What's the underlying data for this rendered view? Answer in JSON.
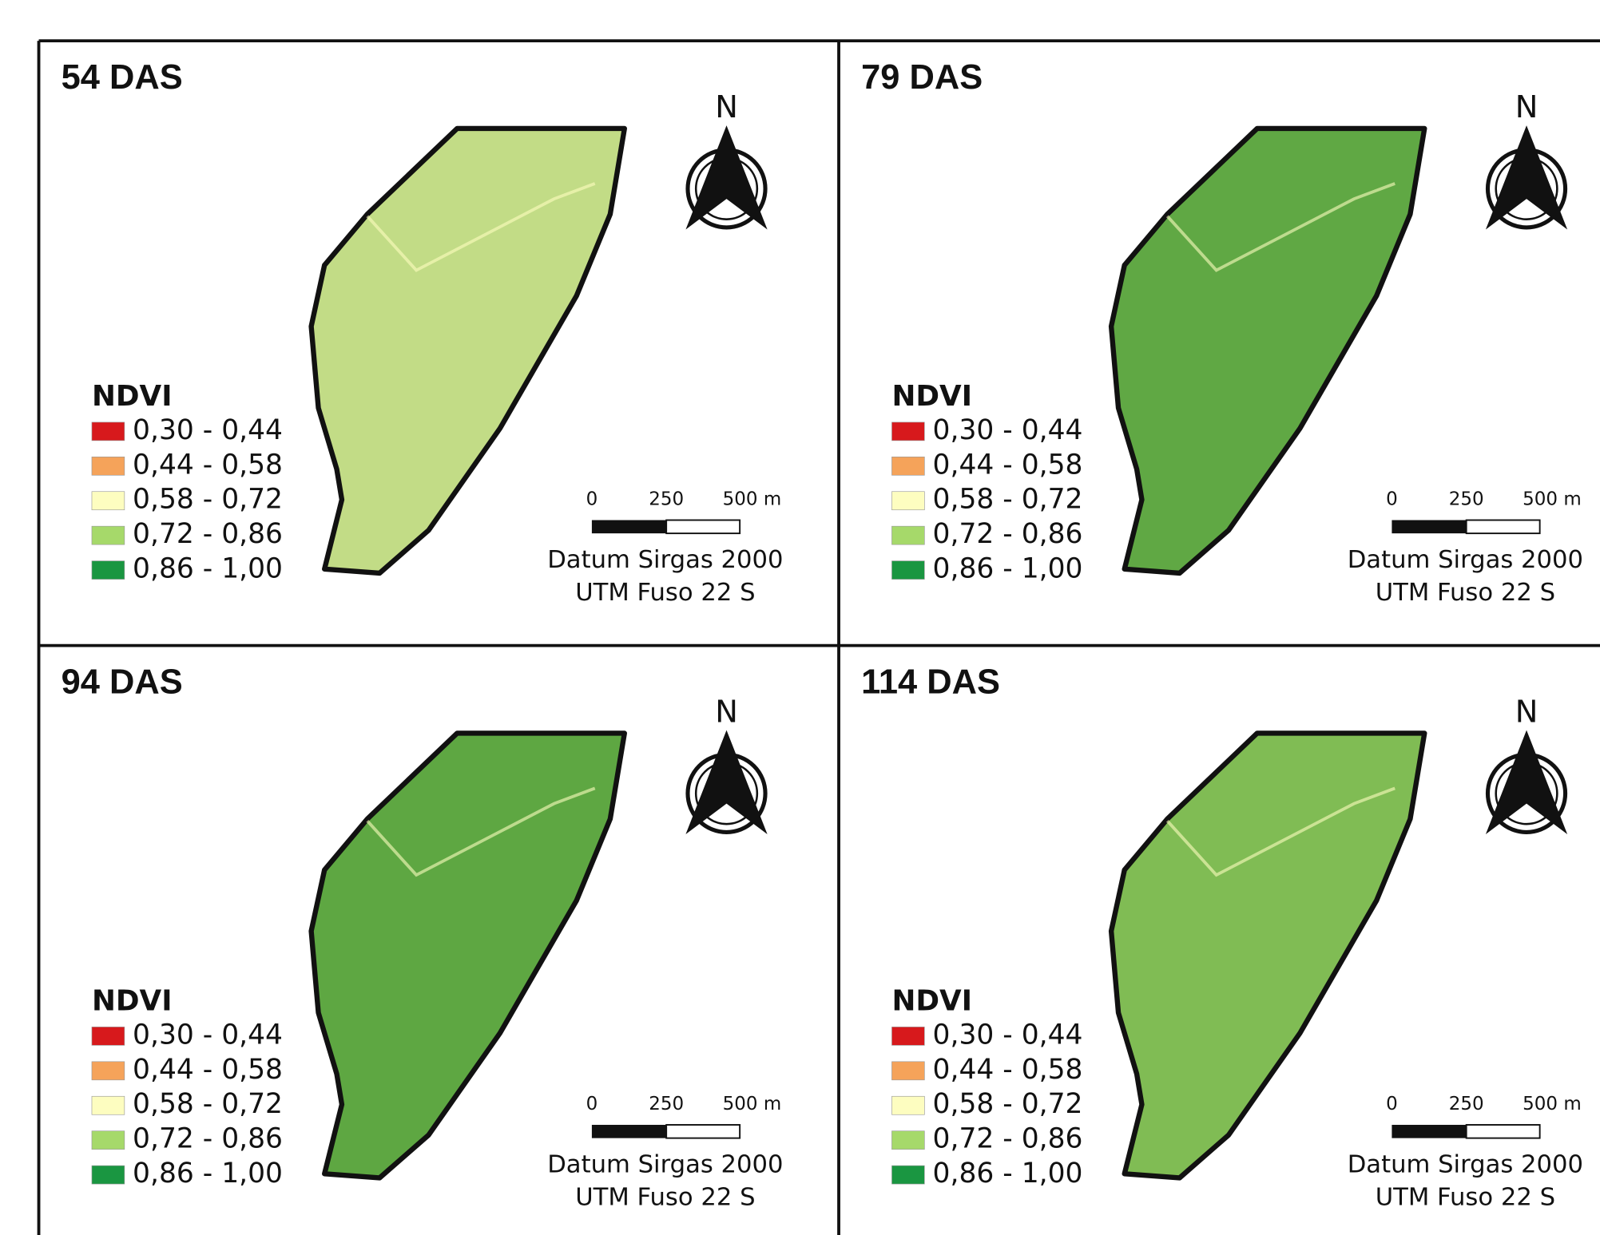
{
  "panels": [
    {
      "title": "54 DAS",
      "field_color": "#c2dc86",
      "legend": {
        "title": "NDVI",
        "items": [
          {
            "label": "0,30 - 0,44",
            "color": "#d7191c"
          },
          {
            "label": "0,44 - 0,58",
            "color": "#f5a35a"
          },
          {
            "label": "0,58 - 0,72",
            "color": "#fdfdc0"
          },
          {
            "label": "0,72 - 0,86",
            "color": "#a6d96a"
          },
          {
            "label": "0,86 - 1,00",
            "color": "#1a9641"
          }
        ]
      },
      "north": "N",
      "scale": [
        "0",
        "250",
        "500 m"
      ],
      "crs": [
        "Datum Sirgas 2000",
        "UTM Fuso 22 S"
      ]
    },
    {
      "title": "79 DAS",
      "field_color": "#60a844",
      "legend": {
        "title": "NDVI",
        "items": [
          {
            "label": "0,30 - 0,44",
            "color": "#d7191c"
          },
          {
            "label": "0,44 - 0,58",
            "color": "#f5a35a"
          },
          {
            "label": "0,58 - 0,72",
            "color": "#fdfdc0"
          },
          {
            "label": "0,72 - 0,86",
            "color": "#a6d96a"
          },
          {
            "label": "0,86 - 1,00",
            "color": "#1a9641"
          }
        ]
      },
      "north": "N",
      "scale": [
        "0",
        "250",
        "500 m"
      ],
      "crs": [
        "Datum Sirgas 2000",
        "UTM Fuso 22 S"
      ]
    },
    {
      "title": "94 DAS",
      "field_color": "#5ea742",
      "legend": {
        "title": "NDVI",
        "items": [
          {
            "label": "0,30 - 0,44",
            "color": "#d7191c"
          },
          {
            "label": "0,44 - 0,58",
            "color": "#f5a35a"
          },
          {
            "label": "0,58 - 0,72",
            "color": "#fdfdc0"
          },
          {
            "label": "0,72 - 0,86",
            "color": "#a6d96a"
          },
          {
            "label": "0,86 - 1,00",
            "color": "#1a9641"
          }
        ]
      },
      "north": "N",
      "scale": [
        "0",
        "250",
        "500 m"
      ],
      "crs": [
        "Datum Sirgas 2000",
        "UTM Fuso 22 S"
      ]
    },
    {
      "title": "114 DAS",
      "field_color": "#80bc54",
      "legend": {
        "title": "NDVI",
        "items": [
          {
            "label": "0,30 - 0,44",
            "color": "#d7191c"
          },
          {
            "label": "0,44 - 0,58",
            "color": "#f5a35a"
          },
          {
            "label": "0,58 - 0,72",
            "color": "#fdfdc0"
          },
          {
            "label": "0,72 - 0,86",
            "color": "#a6d96a"
          },
          {
            "label": "0,86 - 1,00",
            "color": "#1a9641"
          }
        ]
      },
      "north": "N",
      "scale": [
        "0",
        "250",
        "500 m"
      ],
      "crs": [
        "Datum Sirgas 2000",
        "UTM Fuso 22 S"
      ]
    }
  ]
}
